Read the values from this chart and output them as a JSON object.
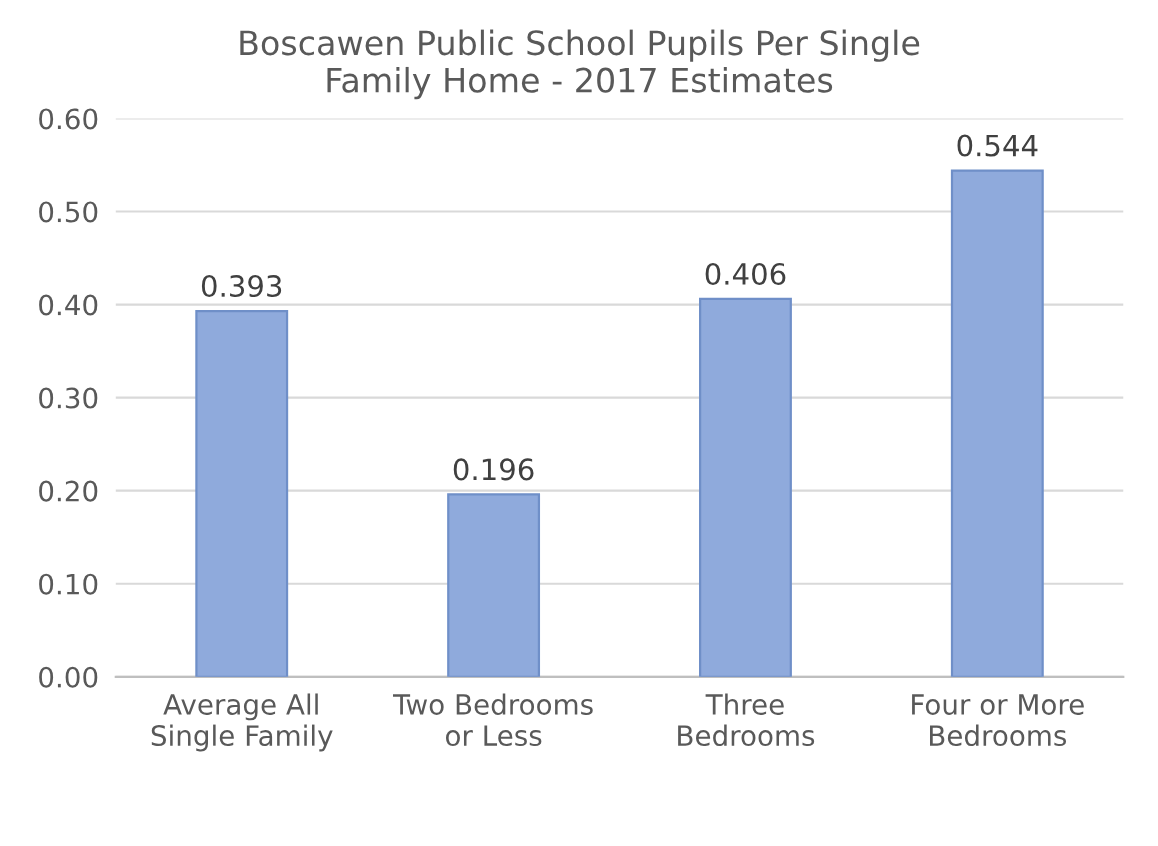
{
  "chart_data": {
    "type": "bar",
    "title": "Boscawen Public School Pupils Per Single\nFamily Home - 2017 Estimates",
    "categories": [
      "Average All\nSingle Family",
      "Two Bedrooms\nor Less",
      "Three\nBedrooms",
      "Four or More\nBedrooms"
    ],
    "values": [
      0.393,
      0.196,
      0.406,
      0.544
    ],
    "color": "#8faadc",
    "data_labels": true,
    "ylim": [
      0,
      0.6
    ],
    "yticks": [
      {
        "value": 0,
        "label": "0.00"
      },
      {
        "value": 0.1,
        "label": "0.10"
      },
      {
        "value": 0.2,
        "label": "0.20"
      },
      {
        "value": 0.3,
        "label": "0.30"
      },
      {
        "value": 0.4,
        "label": "0.40"
      },
      {
        "value": 0.5,
        "label": "0.50"
      },
      {
        "value": 0.6,
        "label": "0.60"
      }
    ],
    "grid": "y"
  }
}
